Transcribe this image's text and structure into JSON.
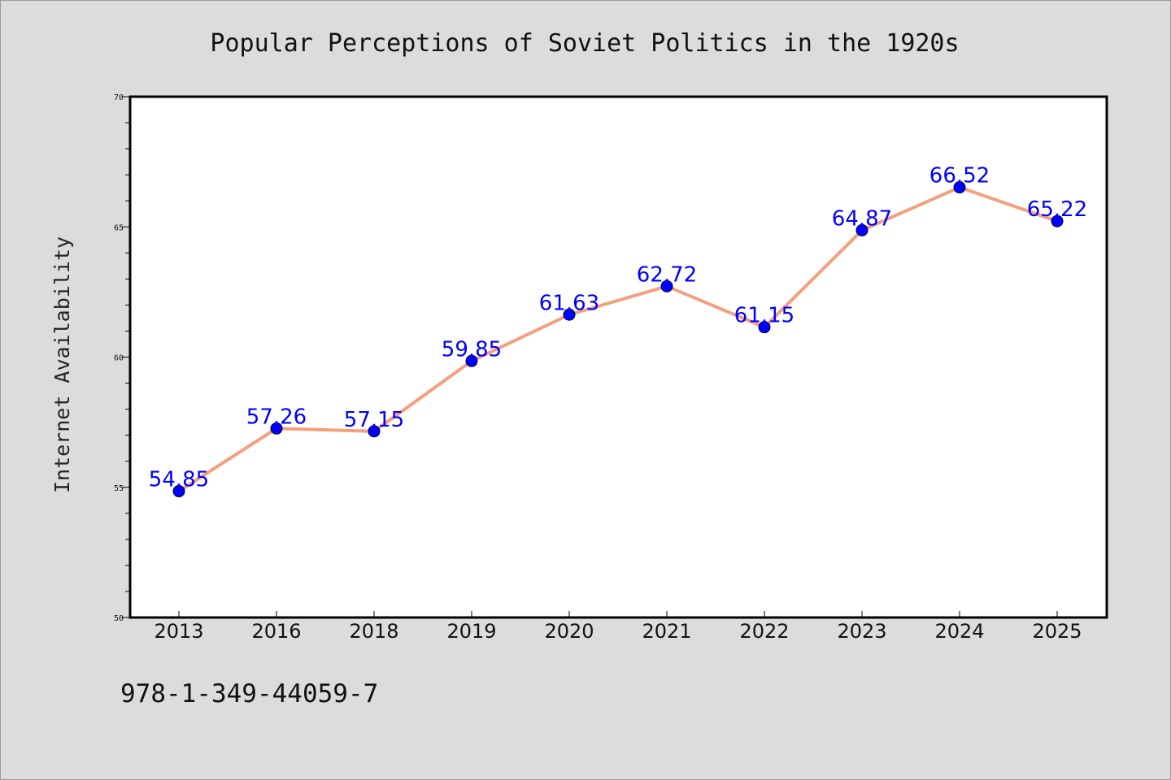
{
  "chart_data": {
    "type": "line",
    "title": "Popular Perceptions of Soviet Politics in the 1920s",
    "xlabel": "",
    "ylabel": "Internet Availability",
    "categories": [
      "2013",
      "2016",
      "2018",
      "2019",
      "2020",
      "2021",
      "2022",
      "2023",
      "2024",
      "2025"
    ],
    "series": [
      {
        "values": [
          54.85,
          57.26,
          57.15,
          59.85,
          61.63,
          62.72,
          61.15,
          64.87,
          66.52,
          65.22
        ],
        "labels": [
          "54.85",
          "57.26",
          "57.15",
          "59.85",
          "61.63",
          "62.72",
          "61.15",
          "64.87",
          "66.52",
          "65.22"
        ]
      }
    ],
    "ylim": [
      50,
      70
    ],
    "yticks": [
      "50",
      "55",
      "60",
      "65",
      "70"
    ],
    "grid": false,
    "legend": "none"
  },
  "footer": {
    "isbn": "978-1-349-44059-7"
  },
  "colors": {
    "background": "#dcdcdc",
    "plot_background": "#ffffff",
    "line": "#f4a07e",
    "marker": "#0000ff",
    "label": "#0000ff"
  }
}
